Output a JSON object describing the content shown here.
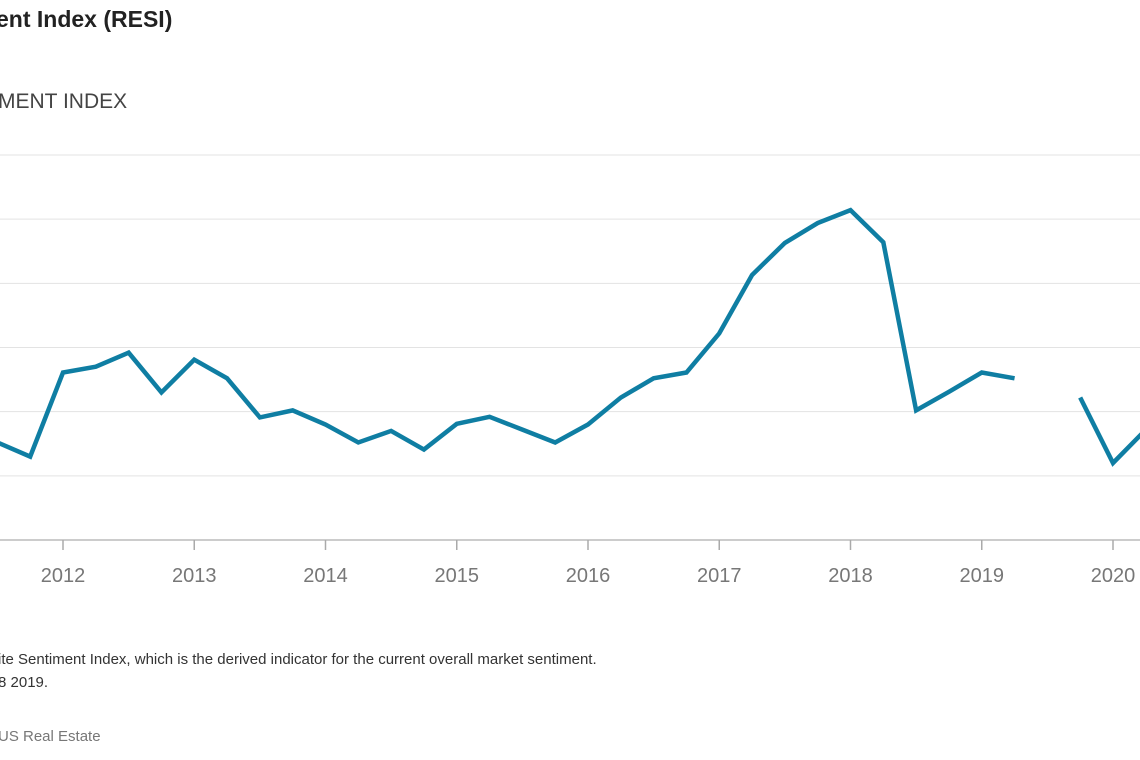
{
  "chart_data": {
    "type": "line",
    "title": "ent Index (RESI)",
    "subtitle": "MENT INDEX",
    "xlabel": "",
    "ylabel": "",
    "x_ticks": [
      "2012",
      "2013",
      "2014",
      "2015",
      "2016",
      "2017",
      "2018",
      "2019",
      "2020"
    ],
    "xlim": [
      2011.5,
      2020.25
    ],
    "ylim": [
      0,
      6
    ],
    "grid": true,
    "color": "#0f7ea3",
    "series": [
      {
        "x": [
          2011.5,
          2011.75,
          2012,
          2012.25,
          2012.5,
          2012.75,
          2013,
          2013.25,
          2013.5,
          2013.75,
          2014,
          2014.25,
          2014.5,
          2014.75,
          2015,
          2015.25,
          2015.5,
          2015.75,
          2016,
          2016.25,
          2016.5,
          2016.75,
          2017,
          2017.25,
          2017.5,
          2017.75,
          2018,
          2018.25,
          2018.5,
          2018.75,
          2019,
          2019.25,
          2019.5,
          2019.75,
          2020,
          2020.25
        ],
        "values": [
          1.52,
          1.3,
          2.61,
          2.7,
          2.92,
          2.3,
          2.81,
          2.52,
          1.91,
          2.02,
          1.8,
          1.52,
          1.7,
          1.41,
          1.81,
          1.92,
          1.72,
          1.52,
          1.8,
          2.22,
          2.52,
          2.61,
          3.22,
          4.13,
          4.63,
          4.94,
          5.14,
          4.64,
          2.02,
          2.31,
          2.61,
          2.52,
          null,
          2.22,
          1.2,
          1.72
        ]
      }
    ]
  },
  "notes": {
    "line1": "ite Sentiment Index, which is the derived indicator for the current overall market sentiment.",
    "line2": "8 2019.",
    "source": "US Real Estate"
  }
}
